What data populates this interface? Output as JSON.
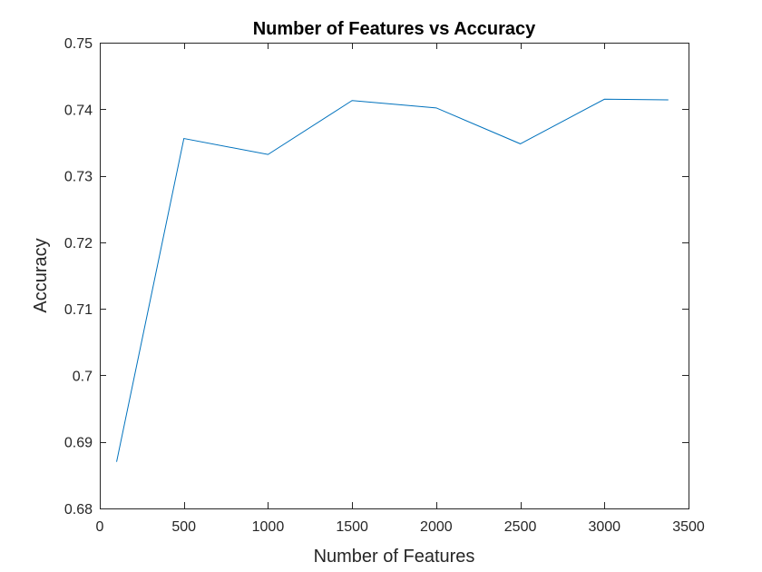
{
  "chart_data": {
    "type": "line",
    "title": "Number of Features vs Accuracy",
    "xlabel": "Number of Features",
    "ylabel": "Accuracy",
    "xlim": [
      0,
      3500
    ],
    "ylim": [
      0.68,
      0.75
    ],
    "x_ticks": [
      0,
      500,
      1000,
      1500,
      2000,
      2500,
      3000,
      3500
    ],
    "x_tick_labels": [
      "0",
      "500",
      "1000",
      "1500",
      "2000",
      "2500",
      "3000",
      "3500"
    ],
    "y_ticks": [
      0.68,
      0.69,
      0.7,
      0.71,
      0.72,
      0.73,
      0.74,
      0.75
    ],
    "y_tick_labels": [
      "0.68",
      "0.69",
      "0.7",
      "0.71",
      "0.72",
      "0.73",
      "0.74",
      "0.75"
    ],
    "grid": false,
    "legend": "none",
    "series": [
      {
        "x": [
          100,
          500,
          1000,
          1500,
          2000,
          2500,
          3000,
          3380
        ],
        "y": [
          0.687,
          0.7356,
          0.7332,
          0.7413,
          0.7402,
          0.7348,
          0.7415,
          0.7414
        ],
        "color": "#0072BD"
      }
    ]
  }
}
